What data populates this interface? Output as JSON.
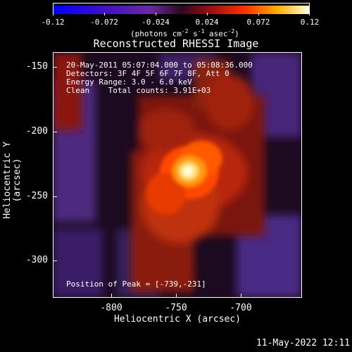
{
  "colorbar": {
    "ticks": [
      "-0.12",
      "-0.072",
      "-0.024",
      "0.024",
      "0.072",
      "0.12"
    ],
    "units_prefix": "(photons cm",
    "units_exp1": "-2",
    "units_mid1": " s",
    "units_exp2": "-1",
    "units_mid2": " asec",
    "units_exp3": "-2",
    "units_suffix": ")"
  },
  "plot": {
    "title": "Reconstructed RHESSI Image",
    "annotations": {
      "line1": "20-May-2011 05:07:04.000 to 05:08:36.000",
      "line2": "Detectors: 3F 4F 5F 6F 7F 8F, Att 0",
      "line3": "Energy Range: 3.0 - 6.0 keV",
      "line4": "Clean    Total counts: 3.91E+03",
      "peak": "Position of Peak = [-739,-231]"
    },
    "xlabel": "Heliocentric X (arcsec)",
    "ylabel": "Heliocentric Y (arcsec)",
    "xticks": [
      "-800",
      "-750",
      "-700"
    ],
    "yticks": [
      "-150",
      "-200",
      "-250",
      "-300"
    ]
  },
  "timestamp": "11-May-2022 12:11"
}
